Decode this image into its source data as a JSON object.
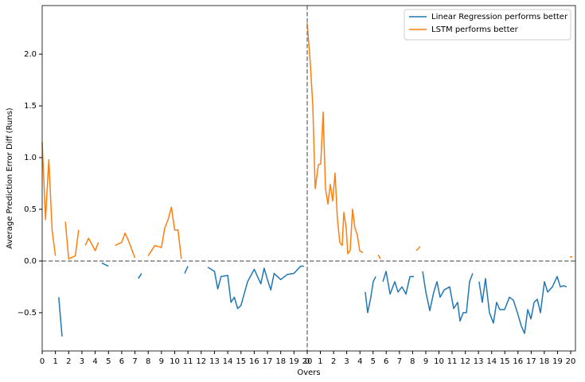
{
  "chart_data": {
    "type": "line",
    "xlabel": "Overs",
    "ylabel": "Average Prediction Error Diff (Runs)",
    "x": [
      0,
      0.25,
      0.5,
      0.75,
      1,
      1.25,
      1.5,
      1.75,
      2,
      2.5,
      2.75,
      3,
      3.25,
      3.5,
      4,
      4.25,
      4.5,
      5,
      5.5,
      6,
      6.25,
      6.5,
      7,
      7.25,
      7.5,
      8,
      8.5,
      9,
      9.25,
      9.5,
      9.75,
      10,
      10.25,
      10.5,
      10.75,
      11,
      11.25,
      11.5,
      12,
      12.5,
      13,
      13.25,
      13.5,
      14,
      14.25,
      14.5,
      14.75,
      15,
      15.5,
      16,
      16.5,
      16.75,
      17,
      17.25,
      17.5,
      18,
      18.5,
      19,
      19.5,
      19.75,
      20,
      20.24,
      20.42,
      20.6,
      20.84,
      21.02,
      21.2,
      21.38,
      21.56,
      21.74,
      21.92,
      22.1,
      22.28,
      22.46,
      22.64,
      22.76,
      22.94,
      23.06,
      23.24,
      23.42,
      23.6,
      23.78,
      23.96,
      24.2,
      24.38,
      24.56,
      24.8,
      24.98,
      25.17,
      25.35,
      25.53,
      25.71,
      25.95,
      26.25,
      26.61,
      26.85,
      27.15,
      27.45,
      27.75,
      28.05,
      28.23,
      28.53,
      28.71,
      28.95,
      29.25,
      29.55,
      29.79,
      30.03,
      30.33,
      30.75,
      31.05,
      31.35,
      31.53,
      31.77,
      32.01,
      32.25,
      32.49,
      32.73,
      32.97,
      33.21,
      33.45,
      33.75,
      34.05,
      34.29,
      34.53,
      34.89,
      35.26,
      35.56,
      35.86,
      36.16,
      36.4,
      36.64,
      36.88,
      37.12,
      37.36,
      37.6,
      37.9,
      38.14,
      38.5,
      38.86,
      39.1,
      39.34,
      39.58,
      39.82,
      40
    ],
    "series": [
      {
        "name": "Linear Regression performs better",
        "color": "#1f77b4",
        "values": [
          null,
          null,
          null,
          null,
          null,
          -0.35,
          -0.73,
          null,
          null,
          null,
          null,
          -0.14,
          null,
          null,
          null,
          null,
          -0.02,
          -0.05,
          null,
          null,
          null,
          null,
          null,
          -0.17,
          -0.12,
          null,
          null,
          null,
          null,
          null,
          null,
          null,
          null,
          null,
          -0.12,
          -0.05,
          null,
          -0.1,
          null,
          -0.06,
          -0.1,
          -0.27,
          -0.15,
          -0.14,
          -0.4,
          -0.35,
          -0.46,
          -0.43,
          -0.2,
          -0.08,
          -0.22,
          -0.07,
          -0.18,
          -0.28,
          -0.12,
          -0.18,
          -0.13,
          -0.12,
          -0.05,
          -0.05,
          null,
          null,
          null,
          null,
          null,
          null,
          null,
          null,
          null,
          null,
          null,
          null,
          null,
          null,
          null,
          null,
          null,
          null,
          null,
          null,
          null,
          null,
          null,
          null,
          -0.3,
          -0.5,
          -0.35,
          -0.2,
          -0.15,
          null,
          null,
          -0.2,
          -0.1,
          -0.32,
          -0.2,
          -0.3,
          -0.25,
          -0.32,
          -0.15,
          -0.15,
          null,
          null,
          -0.1,
          -0.3,
          -0.48,
          -0.3,
          -0.2,
          -0.35,
          -0.28,
          -0.25,
          -0.46,
          -0.4,
          -0.58,
          -0.5,
          -0.5,
          -0.2,
          -0.12,
          null,
          -0.2,
          -0.4,
          -0.17,
          -0.5,
          -0.6,
          -0.4,
          -0.47,
          -0.47,
          -0.35,
          -0.38,
          -0.5,
          -0.63,
          -0.7,
          -0.47,
          -0.56,
          -0.4,
          -0.37,
          -0.5,
          -0.2,
          -0.3,
          -0.25,
          -0.15,
          -0.25,
          -0.24,
          -0.25,
          null,
          null
        ]
      },
      {
        "name": "LSTM performs better",
        "color": "#ff7f0e",
        "values": [
          1.15,
          0.4,
          0.98,
          0.3,
          0.05,
          null,
          null,
          0.38,
          0.02,
          0.05,
          0.3,
          null,
          0.15,
          0.22,
          0.1,
          0.18,
          null,
          null,
          0.15,
          0.18,
          0.27,
          0.2,
          0.03,
          null,
          null,
          0.05,
          0.15,
          0.13,
          0.32,
          0.4,
          0.52,
          0.3,
          0.3,
          0.02,
          null,
          null,
          0.07,
          null,
          0.03,
          null,
          null,
          null,
          null,
          null,
          null,
          null,
          null,
          null,
          null,
          null,
          null,
          null,
          null,
          null,
          null,
          null,
          null,
          null,
          null,
          null,
          2.3,
          1.9,
          1.5,
          0.7,
          0.93,
          0.94,
          1.44,
          0.7,
          0.55,
          0.74,
          0.58,
          0.85,
          0.4,
          0.18,
          0.15,
          0.47,
          0.32,
          0.07,
          0.1,
          0.5,
          0.32,
          0.25,
          0.1,
          0.08,
          null,
          null,
          null,
          null,
          null,
          0.06,
          0.02,
          null,
          null,
          null,
          null,
          null,
          null,
          null,
          null,
          null,
          0.1,
          0.14,
          null,
          null,
          null,
          null,
          null,
          null,
          null,
          null,
          null,
          null,
          null,
          null,
          null,
          null,
          null,
          0.04,
          null,
          null,
          null,
          null,
          null,
          null,
          null,
          null,
          null,
          null,
          null,
          null,
          null,
          null,
          null,
          null,
          null,
          null,
          null,
          null,
          null,
          null,
          null,
          null,
          null,
          0.04,
          0.04
        ]
      }
    ],
    "xlim": [
      0,
      40.24
    ],
    "ylim": [
      -0.87,
      2.47
    ],
    "xticks": [
      0,
      1,
      2,
      3,
      4,
      5,
      6,
      7,
      8,
      9,
      10,
      11,
      12,
      13,
      14,
      15,
      16,
      17,
      18,
      19,
      20,
      {
        "value": 20,
        "label": "0"
      },
      {
        "value": 20.99,
        "label": "1"
      },
      {
        "value": 21.99,
        "label": "2"
      },
      {
        "value": 22.98,
        "label": "3"
      },
      {
        "value": 23.98,
        "label": "4"
      },
      {
        "value": 24.97,
        "label": "5"
      },
      {
        "value": 25.96,
        "label": "6"
      },
      {
        "value": 26.96,
        "label": "7"
      },
      {
        "value": 27.95,
        "label": "8"
      },
      {
        "value": 28.95,
        "label": "9"
      },
      {
        "value": 29.94,
        "label": "10"
      },
      {
        "value": 30.93,
        "label": "11"
      },
      {
        "value": 31.93,
        "label": "12"
      },
      {
        "value": 32.92,
        "label": "13"
      },
      {
        "value": 33.92,
        "label": "14"
      },
      {
        "value": 34.91,
        "label": "15"
      },
      {
        "value": 35.9,
        "label": "16"
      },
      {
        "value": 36.9,
        "label": "17"
      },
      {
        "value": 37.89,
        "label": "18"
      },
      {
        "value": 38.89,
        "label": "19"
      },
      {
        "value": 39.88,
        "label": "20"
      }
    ],
    "yticks": [
      {
        "value": -0.5,
        "label": "−0.5"
      },
      {
        "value": 0,
        "label": "0.0"
      },
      {
        "value": 0.5,
        "label": "0.5"
      },
      {
        "value": 1,
        "label": "1.0"
      },
      {
        "value": 1.5,
        "label": "1.5"
      },
      {
        "value": 2,
        "label": "2.0"
      }
    ],
    "hline": 0,
    "vline": 20,
    "grid": false,
    "legend": "upper right"
  }
}
